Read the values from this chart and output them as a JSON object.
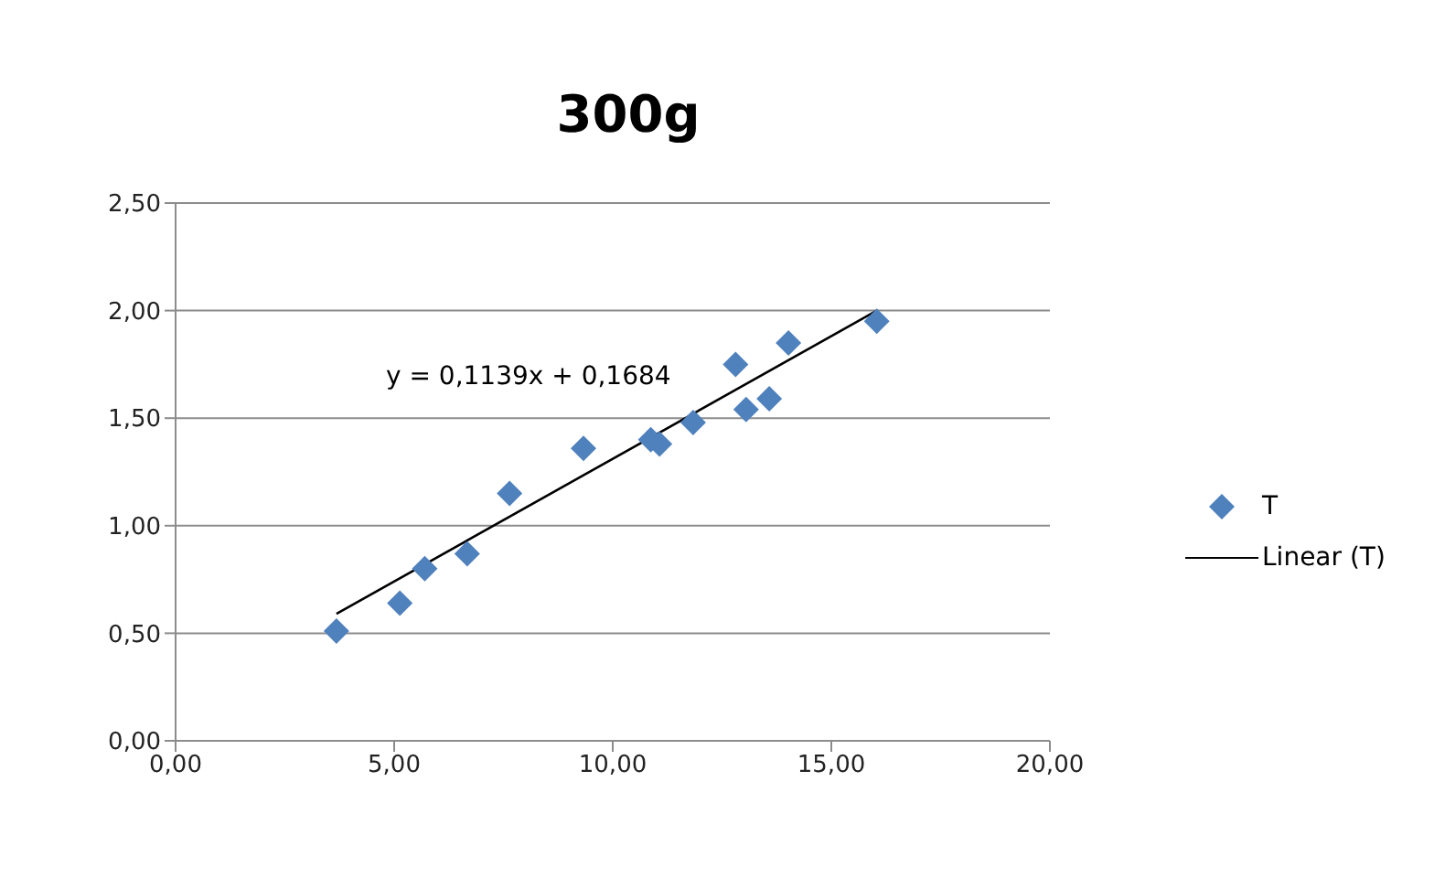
{
  "chart_data": {
    "type": "scatter",
    "title": "300g",
    "series": [
      {
        "name": "T",
        "color": "#4f81bd",
        "marker": "diamond",
        "x": [
          3.68,
          5.13,
          5.7,
          6.67,
          7.64,
          9.33,
          10.87,
          11.07,
          11.84,
          12.81,
          13.05,
          13.58,
          14.02,
          16.04
        ],
        "values": [
          0.51,
          0.64,
          0.8,
          0.87,
          1.15,
          1.36,
          1.4,
          1.38,
          1.48,
          1.75,
          1.54,
          1.59,
          1.85,
          1.95
        ]
      },
      {
        "name": "Linear (T)",
        "type": "line",
        "color": "#000000",
        "x": [
          3.68,
          16.04
        ],
        "values": [
          0.59,
          2.0
        ]
      }
    ],
    "annotations": [
      "y = 0,1139x + 0,1684"
    ],
    "xlim": [
      0,
      20
    ],
    "xticks": [
      {
        "value": 0,
        "label": "0,00"
      },
      {
        "value": 5,
        "label": "5,00"
      },
      {
        "value": 10,
        "label": "10,00"
      },
      {
        "value": 15,
        "label": "15,00"
      },
      {
        "value": 20,
        "label": "20,00"
      }
    ],
    "ylim": [
      0,
      2.5
    ],
    "yticks": [
      {
        "value": 0,
        "label": "0,00"
      },
      {
        "value": 0.5,
        "label": "0,50"
      },
      {
        "value": 1,
        "label": "1,00"
      },
      {
        "value": 1.5,
        "label": "1,50"
      },
      {
        "value": 2,
        "label": "2,00"
      },
      {
        "value": 2.5,
        "label": "2,50"
      }
    ],
    "grid": "y",
    "legend": "right"
  }
}
